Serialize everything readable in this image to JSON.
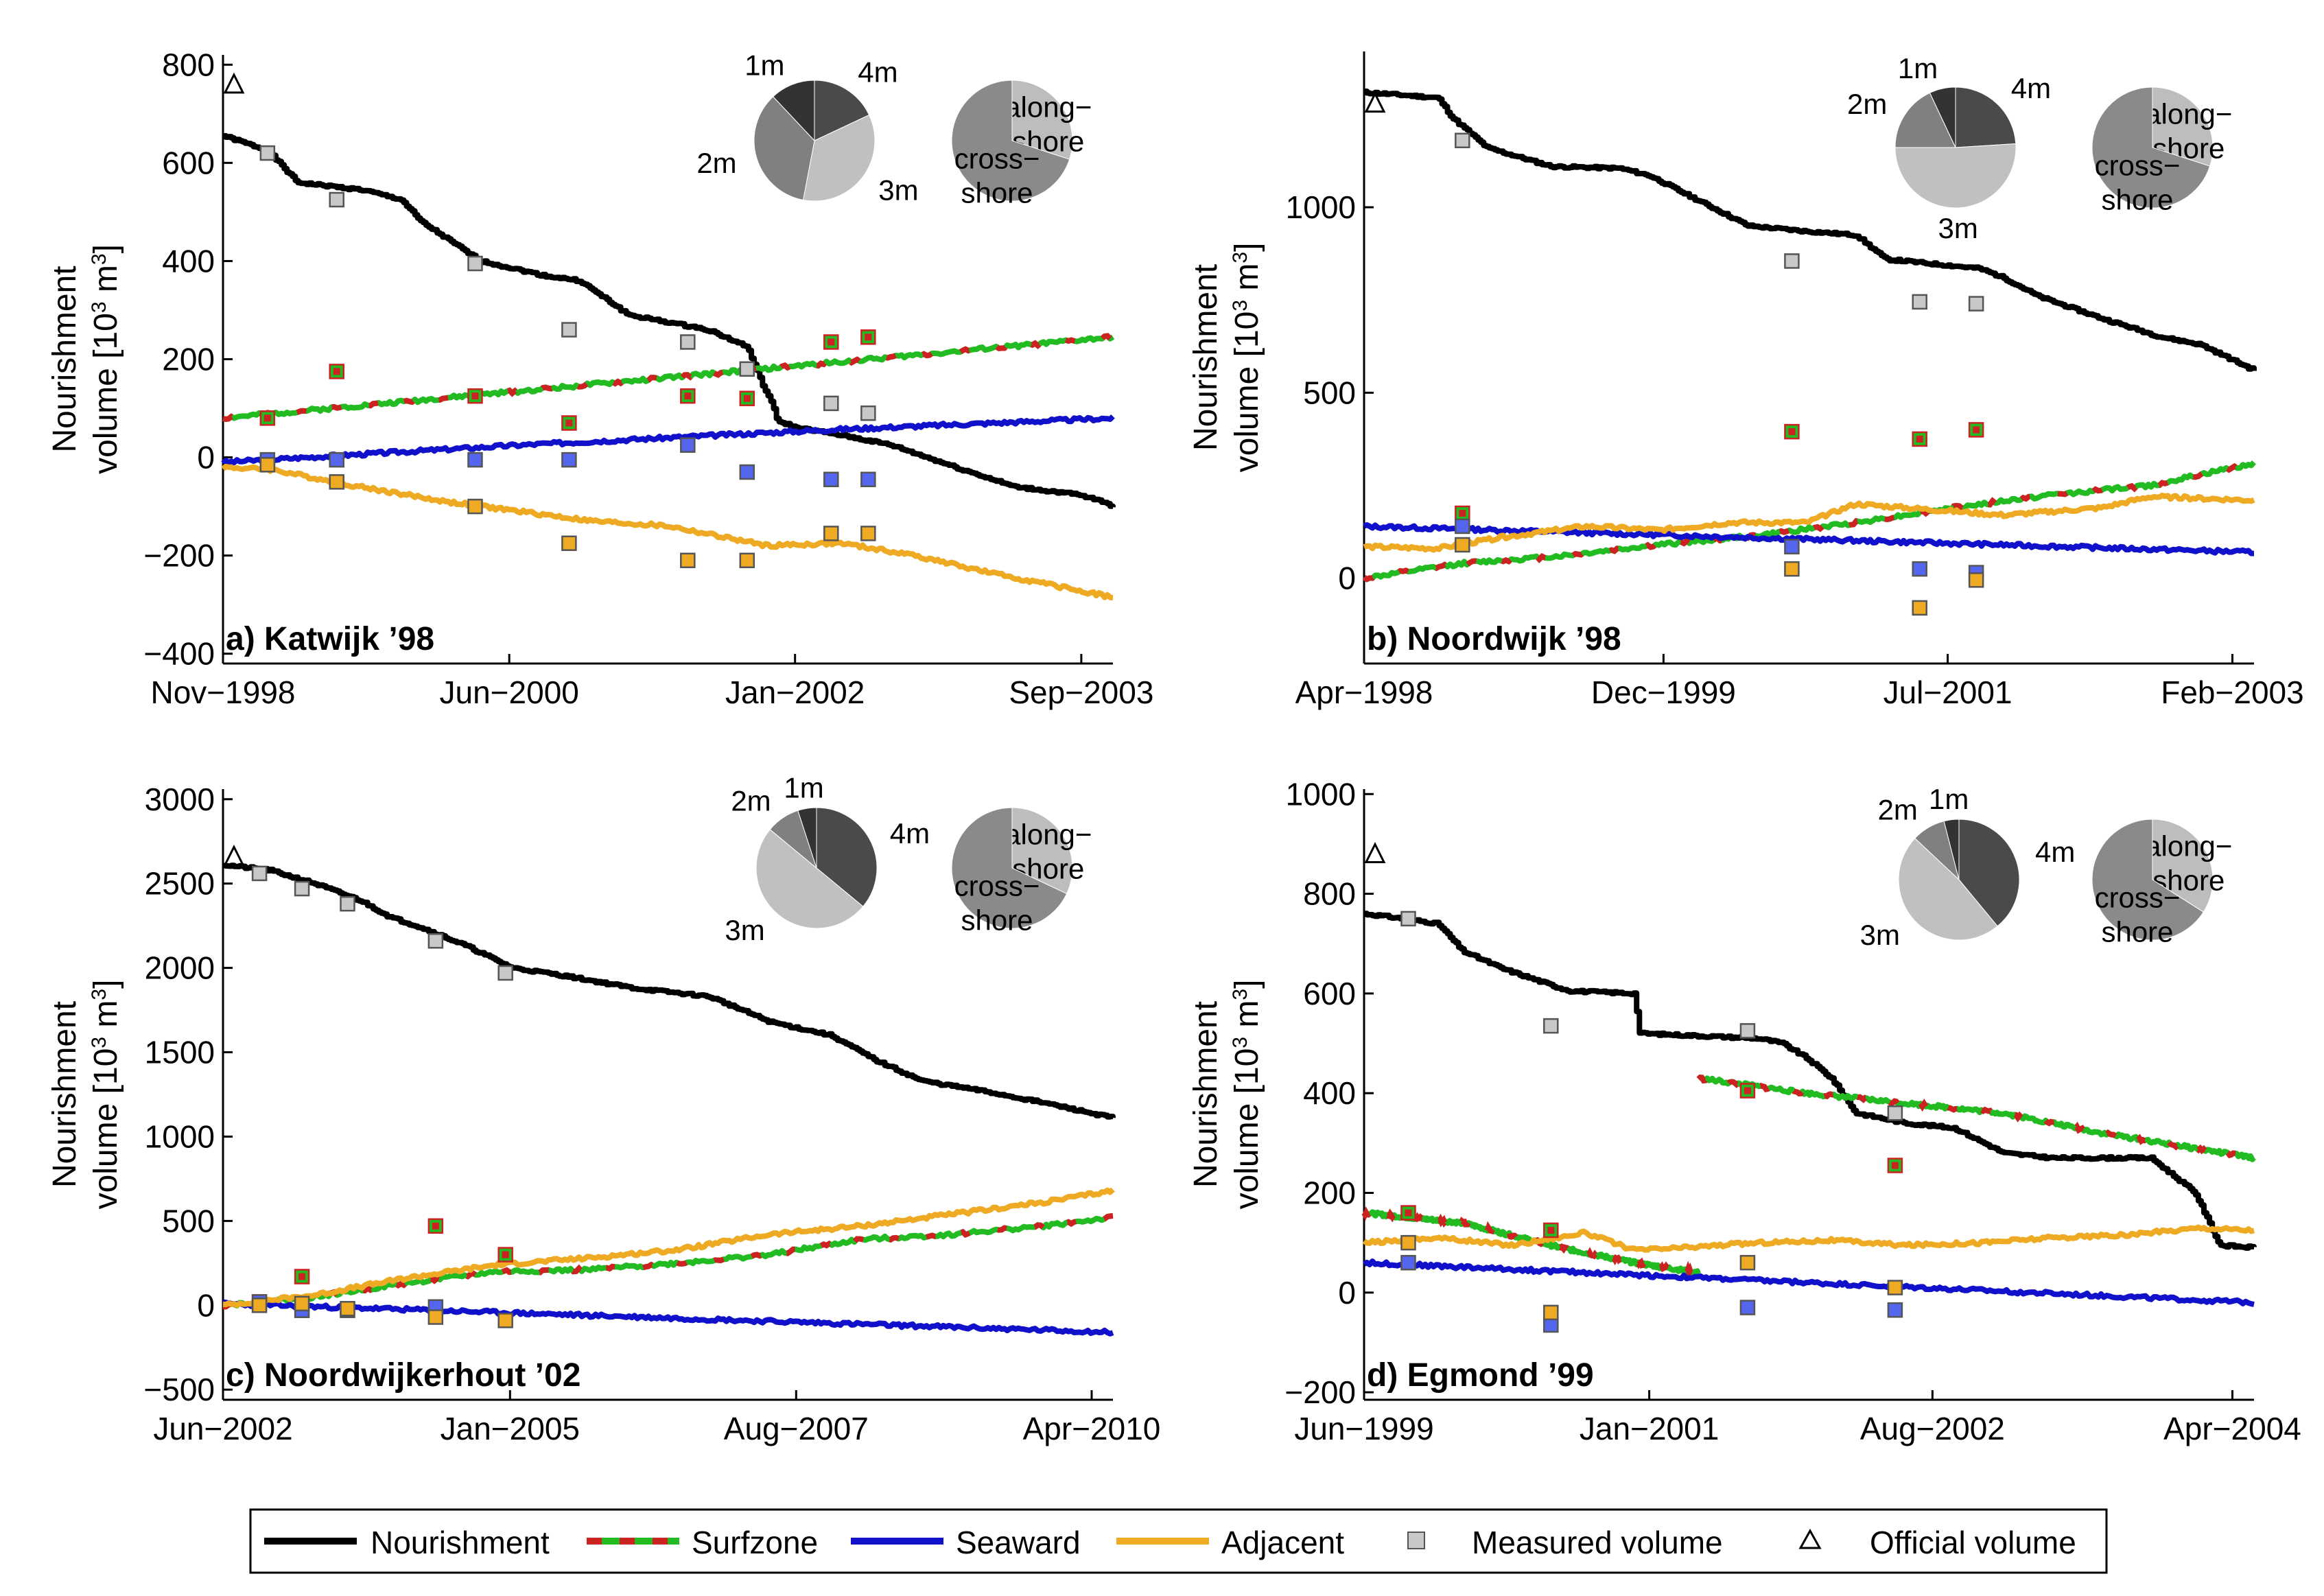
{
  "colors": {
    "nourishment": "#000000",
    "surfzone_a": "#22bb22",
    "surfzone_b": "#cc2222",
    "seaward": "#1111cc",
    "adjacent": "#eeaa22",
    "measured": "#c8c8c8",
    "pie_1m": "#333333",
    "pie_2m": "#808080",
    "pie_3m": "#c0c0c0",
    "pie_4m": "#4a4a4a",
    "pie_along": "#bdbdbd",
    "pie_cross": "#8a8a8a"
  },
  "legend": {
    "nourishment": "Nourishment",
    "surfzone": "Surfzone",
    "seaward": "Seaward",
    "adjacent": "Adjacent",
    "measured": "Measured volume",
    "official": "Official volume"
  },
  "chart_data": [
    {
      "type": "line",
      "panel": "a",
      "title": "a) Katwijk ’98",
      "ylabel_line1": "Nourishment",
      "ylabel_line2": "volume [10",
      "ylabel_sup1": "3",
      "ylabel_mid": " m",
      "ylabel_sup2": "3",
      "ylabel_end": "]",
      "xlim": [
        0,
        1800
      ],
      "ylim": [
        -420,
        820
      ],
      "yticks": [
        -400,
        -200,
        0,
        200,
        400,
        600,
        800
      ],
      "ytick_labels": [
        "−400",
        "−200",
        "0",
        "200",
        "400",
        "600",
        "800"
      ],
      "xticks": [
        0,
        579,
        1157,
        1736
      ],
      "xtick_labels": [
        "Nov−1998",
        "Jun−2000",
        "Jan−2002",
        "Sep−2003"
      ],
      "official": [
        0,
        760
      ],
      "series": [
        {
          "name": "Nourishment",
          "key": "nourishment",
          "end": 1800,
          "x": [
            0,
            90,
            150,
            280,
            360,
            400,
            520,
            650,
            720,
            820,
            980,
            1060,
            1090,
            1110,
            1120,
            1160,
            1250,
            1350,
            1480,
            1600,
            1720,
            1780,
            1800
          ],
          "y": [
            655,
            625,
            560,
            545,
            525,
            480,
            400,
            370,
            360,
            290,
            260,
            225,
            150,
            110,
            75,
            60,
            45,
            25,
            -20,
            -60,
            -75,
            -90,
            -100
          ]
        },
        {
          "name": "Surfzone",
          "key": "surfzone",
          "end": 1800,
          "x": [
            0,
            1800
          ],
          "y": [
            80,
            245
          ]
        },
        {
          "name": "Seaward",
          "key": "seaward",
          "end": 1800,
          "x": [
            0,
            600,
            1200,
            1800
          ],
          "y": [
            -10,
            25,
            55,
            80
          ]
        },
        {
          "name": "Adjacent",
          "key": "adjacent",
          "end": 1800,
          "x": [
            0,
            100,
            250,
            450,
            600,
            750,
            900,
            1100,
            1250,
            1400,
            1550,
            1700,
            1800
          ],
          "y": [
            -20,
            -25,
            -55,
            -90,
            -110,
            -130,
            -140,
            -180,
            -175,
            -200,
            -235,
            -265,
            -285
          ]
        }
      ],
      "measured": [
        {
          "x": 90,
          "nourish": 620,
          "surf": 80,
          "sea": -5,
          "adj": -15
        },
        {
          "x": 230,
          "nourish": 525,
          "surf": 175,
          "sea": -5,
          "adj": -50
        },
        {
          "x": 510,
          "nourish": 395,
          "surf": 125,
          "sea": -5,
          "adj": -100
        },
        {
          "x": 700,
          "nourish": 260,
          "surf": 70,
          "sea": -5,
          "adj": -175
        },
        {
          "x": 940,
          "nourish": 235,
          "surf": 125,
          "sea": 25,
          "adj": -210
        },
        {
          "x": 1060,
          "nourish": 180,
          "surf": 120,
          "sea": -30,
          "adj": -210
        },
        {
          "x": 1230,
          "nourish": 110,
          "surf": 235,
          "sea": -45,
          "adj": -155
        },
        {
          "x": 1305,
          "nourish": 90,
          "surf": 245,
          "sea": -45,
          "adj": -155
        }
      ],
      "pie_depth": [
        {
          "label": "4m",
          "value": 0.18
        },
        {
          "label": "3m",
          "value": 0.35
        },
        {
          "label": "2m",
          "value": 0.35
        },
        {
          "label": "1m",
          "value": 0.12
        }
      ],
      "pie_dir": [
        {
          "label": "along−\nshore",
          "value": 0.3
        },
        {
          "label": "cross−\nshore",
          "value": 0.7
        }
      ]
    },
    {
      "type": "line",
      "panel": "b",
      "title": "b) Noordwijk ’98",
      "ylabel_line1": "Nourishment",
      "ylabel_line2": "volume [10",
      "ylabel_sup1": "3",
      "ylabel_mid": " m",
      "ylabel_sup2": "3",
      "ylabel_end": "]",
      "xlim": [
        0,
        1810
      ],
      "ylim": [
        -230,
        1420
      ],
      "yticks": [
        0,
        500,
        1000
      ],
      "ytick_labels": [
        "0",
        "500",
        "1000"
      ],
      "xticks": [
        0,
        609,
        1187,
        1766
      ],
      "xtick_labels": [
        "Apr−1998",
        "Dec−1999",
        "Jul−2001",
        "Feb−2003"
      ],
      "official": [
        0,
        1280
      ],
      "series": [
        {
          "name": "Nourishment",
          "key": "nourishment",
          "end": 1810,
          "x": [
            0,
            150,
            180,
            250,
            380,
            520,
            580,
            780,
            900,
            1000,
            1060,
            1250,
            1300,
            1370,
            1500,
            1620,
            1700,
            1810
          ],
          "y": [
            1310,
            1295,
            1240,
            1160,
            1110,
            1105,
            1085,
            950,
            935,
            925,
            860,
            835,
            810,
            760,
            700,
            650,
            630,
            560
          ]
        },
        {
          "name": "Surfzone",
          "key": "surfzone",
          "end": 1810,
          "x": [
            0,
            200,
            400,
            600,
            800,
            1000,
            1200,
            1400,
            1600,
            1810
          ],
          "y": [
            0,
            40,
            60,
            90,
            115,
            150,
            190,
            225,
            250,
            310
          ]
        },
        {
          "name": "Seaward",
          "key": "seaward",
          "end": 1810,
          "x": [
            0,
            1810
          ],
          "y": [
            140,
            70
          ]
        },
        {
          "name": "Adjacent",
          "key": "adjacent",
          "end": 1810,
          "x": [
            0,
            150,
            280,
            450,
            600,
            750,
            900,
            1000,
            1100,
            1300,
            1500,
            1600,
            1810
          ],
          "y": [
            85,
            80,
            110,
            140,
            130,
            150,
            150,
            200,
            190,
            170,
            190,
            220,
            210
          ]
        }
      ],
      "measured": [
        {
          "x": 200,
          "nourish": 1180,
          "surf": 175,
          "sea": 140,
          "adj": 90
        },
        {
          "x": 870,
          "nourish": 855,
          "surf": 395,
          "sea": 85,
          "adj": 25
        },
        {
          "x": 1130,
          "nourish": 745,
          "surf": 375,
          "sea": 25,
          "adj": -80
        },
        {
          "x": 1245,
          "nourish": 740,
          "surf": 400,
          "sea": 15,
          "adj": -5
        }
      ],
      "pie_depth": [
        {
          "label": "4m",
          "value": 0.24
        },
        {
          "label": "3m",
          "value": 0.51
        },
        {
          "label": "2m",
          "value": 0.18
        },
        {
          "label": "1m",
          "value": 0.07
        }
      ],
      "pie_dir": [
        {
          "label": "along−\nshore",
          "value": 0.3
        },
        {
          "label": "cross−\nshore",
          "value": 0.7
        }
      ]
    },
    {
      "type": "line",
      "panel": "c",
      "title": "c) Noordwijkerhout ’02",
      "ylabel_line1": "Nourishment",
      "ylabel_line2": "volume [10",
      "ylabel_sup1": "3",
      "ylabel_mid": " m",
      "ylabel_sup2": "3",
      "ylabel_end": "]",
      "xlim": [
        0,
        2930
      ],
      "ylim": [
        -560,
        3060
      ],
      "yticks": [
        -500,
        0,
        500,
        1000,
        1500,
        2000,
        2500,
        3000
      ],
      "ytick_labels": [
        "−500",
        "0",
        "500",
        "1000",
        "1500",
        "2000",
        "2500",
        "3000"
      ],
      "xticks": [
        0,
        945,
        1887,
        2860
      ],
      "xtick_labels": [
        "Jun−2002",
        "Jan−2005",
        "Aug−2007",
        "Apr−2010"
      ],
      "official": [
        0,
        2660
      ],
      "series": [
        {
          "name": "Nourishment",
          "key": "nourishment",
          "end": 2930,
          "x": [
            0,
            150,
            300,
            450,
            550,
            650,
            800,
            950,
            1100,
            1350,
            1600,
            1800,
            2000,
            2150,
            2300,
            2500,
            2700,
            2930
          ],
          "y": [
            2610,
            2580,
            2500,
            2400,
            2300,
            2240,
            2130,
            2000,
            1960,
            1880,
            1830,
            1680,
            1600,
            1450,
            1330,
            1270,
            1200,
            1110
          ]
        },
        {
          "name": "Surfzone",
          "key": "surfzone",
          "end": 2930,
          "x": [
            0,
            300,
            600,
            900,
            1200,
            1500,
            1800,
            2100,
            2400,
            2700,
            2930
          ],
          "y": [
            0,
            50,
            130,
            200,
            210,
            250,
            300,
            390,
            420,
            470,
            520
          ]
        },
        {
          "name": "Seaward",
          "key": "seaward",
          "end": 2930,
          "x": [
            0,
            2930
          ],
          "y": [
            10,
            -160
          ]
        },
        {
          "name": "Adjacent",
          "key": "adjacent",
          "end": 2930,
          "x": [
            0,
            300,
            600,
            900,
            1200,
            1500,
            1800,
            2100,
            2400,
            2700,
            2930
          ],
          "y": [
            0,
            60,
            160,
            240,
            280,
            330,
            420,
            470,
            540,
            610,
            680
          ]
        }
      ],
      "measured": [
        {
          "x": 120,
          "nourish": 2560,
          "surf": 20,
          "sea": 20,
          "adj": 0
        },
        {
          "x": 260,
          "nourish": 2470,
          "surf": 170,
          "sea": -30,
          "adj": 10
        },
        {
          "x": 410,
          "nourish": 2380,
          "surf": null,
          "sea": -30,
          "adj": -20
        },
        {
          "x": 700,
          "nourish": 2160,
          "surf": 470,
          "sea": -10,
          "adj": -70
        },
        {
          "x": 930,
          "nourish": 1970,
          "surf": 300,
          "sea": null,
          "adj": -90
        }
      ],
      "pie_depth": [
        {
          "label": "4m",
          "value": 0.36
        },
        {
          "label": "3m",
          "value": 0.5
        },
        {
          "label": "2m",
          "value": 0.09
        },
        {
          "label": "1m",
          "value": 0.05
        }
      ],
      "pie_dir": [
        {
          "label": "along−\nshore",
          "value": 0.32
        },
        {
          "label": "cross−\nshore",
          "value": 0.68
        }
      ]
    },
    {
      "type": "line",
      "panel": "d",
      "title": "d) Egmond ’99",
      "ylabel_line1": "Nourishment",
      "ylabel_line2": "volume [10",
      "ylabel_sup1": "3",
      "ylabel_mid": " m",
      "ylabel_sup2": "3",
      "ylabel_end": "]",
      "xlim": [
        0,
        1810
      ],
      "ylim": [
        -215,
        1010
      ],
      "yticks": [
        -200,
        0,
        200,
        400,
        600,
        800,
        1000
      ],
      "ytick_labels": [
        "−200",
        "0",
        "200",
        "400",
        "600",
        "800",
        "1000"
      ],
      "xticks": [
        0,
        580,
        1156,
        1766
      ],
      "xtick_labels": [
        "Jun−1999",
        "Jan−2001",
        "Aug−2002",
        "Apr−2004"
      ],
      "official": [
        0,
        880
      ],
      "series": [
        {
          "name": "Nourishment",
          "key": "nourishment",
          "end": 1810,
          "x": [
            0,
            80,
            150,
            200,
            280,
            400,
            420,
            550,
            560,
            800,
            850,
            900,
            950,
            1000,
            1100,
            1200,
            1300,
            1400,
            1600,
            1690,
            1740,
            1810
          ],
          "y": [
            760,
            750,
            740,
            685,
            650,
            610,
            605,
            600,
            520,
            510,
            500,
            470,
            430,
            360,
            340,
            330,
            280,
            270,
            270,
            200,
            95,
            90
          ]
        },
        {
          "name": "Surfzone",
          "key": "surfzone",
          "end": 680,
          "x": [
            0,
            200,
            400,
            550,
            680
          ],
          "y": [
            160,
            140,
            90,
            60,
            40
          ]
        },
        {
          "name": "Surfzone2",
          "key": "surfzone",
          "start": 680,
          "end": 1810,
          "x": [
            680,
            900,
            1100,
            1300,
            1500,
            1810
          ],
          "y": [
            430,
            400,
            380,
            360,
            320,
            270
          ]
        },
        {
          "name": "Seaward",
          "key": "seaward",
          "end": 1810,
          "x": [
            0,
            1810
          ],
          "y": [
            60,
            -20
          ]
        },
        {
          "name": "Adjacent",
          "key": "adjacent",
          "end": 1810,
          "x": [
            0,
            150,
            300,
            450,
            550,
            650,
            800,
            950,
            1100,
            1250,
            1400,
            1550,
            1700,
            1810
          ],
          "y": [
            100,
            110,
            95,
            120,
            85,
            90,
            100,
            105,
            95,
            100,
            110,
            115,
            130,
            125
          ]
        }
      ],
      "measured": [
        {
          "x": 90,
          "nourish": 750,
          "surf": 160,
          "sea": 60,
          "adj": 100
        },
        {
          "x": 380,
          "nourish": 535,
          "surf": 125,
          "sea": -65,
          "adj": -40
        },
        {
          "x": 780,
          "nourish": 525,
          "surf": 405,
          "sea": -30,
          "adj": 60
        },
        {
          "x": 1080,
          "nourish": 360,
          "surf": 255,
          "sea": -35,
          "adj": 10
        }
      ],
      "pie_depth": [
        {
          "label": "4m",
          "value": 0.39
        },
        {
          "label": "3m",
          "value": 0.48
        },
        {
          "label": "2m",
          "value": 0.09
        },
        {
          "label": "1m",
          "value": 0.04
        }
      ],
      "pie_dir": [
        {
          "label": "along−\nshore",
          "value": 0.34
        },
        {
          "label": "cross−\nshore",
          "value": 0.66
        }
      ]
    }
  ]
}
